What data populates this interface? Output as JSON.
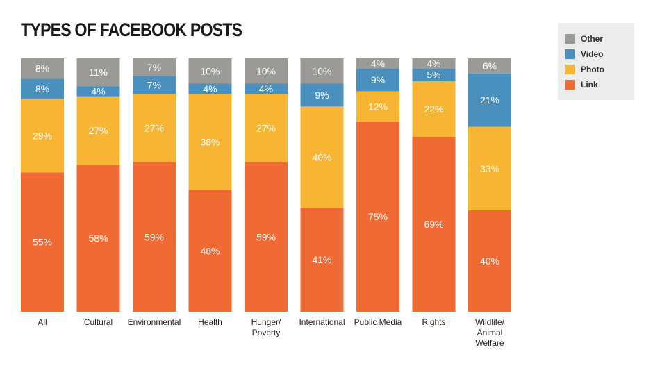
{
  "colors": {
    "Other": "#9b9a96",
    "Video": "#4990be",
    "Photo": "#f8b534",
    "Link": "#f06a34"
  },
  "chart_data": {
    "type": "bar",
    "stacked": true,
    "title": "TYPES OF FACEBOOK POSTS",
    "categories": [
      "All",
      "Cultural",
      "Environmental",
      "Health",
      "Hunger/\nPoverty",
      "International",
      "Public Media",
      "Rights",
      "Wildlife/\nAnimal\nWelfare"
    ],
    "series": [
      {
        "name": "Link",
        "values": [
          55,
          58,
          59,
          48,
          59,
          41,
          75,
          69,
          40
        ]
      },
      {
        "name": "Photo",
        "values": [
          29,
          27,
          27,
          38,
          27,
          40,
          12,
          22,
          33
        ]
      },
      {
        "name": "Video",
        "values": [
          8,
          4,
          7,
          4,
          4,
          9,
          9,
          5,
          21
        ]
      },
      {
        "name": "Other",
        "values": [
          8,
          11,
          7,
          10,
          10,
          10,
          4,
          4,
          6
        ]
      }
    ],
    "legend_order": [
      "Other",
      "Video",
      "Photo",
      "Link"
    ],
    "legend_position": "top-right",
    "value_suffix": "%",
    "grid": false
  }
}
